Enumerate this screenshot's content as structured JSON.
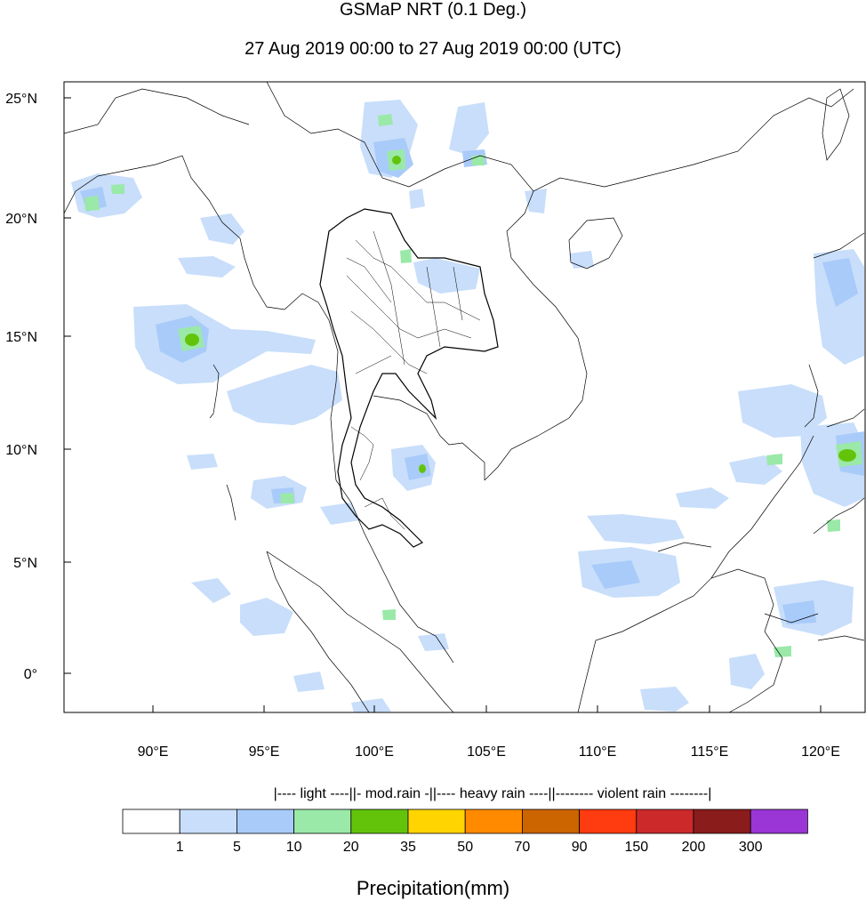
{
  "title": "GSMaP NRT (0.1 Deg.)",
  "subtitle": "27 Aug 2019 00:00 to 27 Aug 2019 00:00 (UTC)",
  "map": {
    "lon_ticks": [
      "90°E",
      "95°E",
      "100°E",
      "105°E",
      "110°E",
      "115°E",
      "120°E"
    ],
    "lat_ticks": [
      "25°N",
      "20°N",
      "15°N",
      "10°N",
      "5°N",
      "0°"
    ]
  },
  "colorbar": {
    "categories_text": "|---- light ----||- mod.rain -||---- heavy rain ----||-------- violent rain --------|",
    "colors": [
      "#ffffff",
      "#c8defa",
      "#a9cbfa",
      "#9ae9a8",
      "#63c30b",
      "#ffd400",
      "#ff8a00",
      "#cc6400",
      "#ff3b10",
      "#cc2a2a",
      "#8a1c1c",
      "#9a35d6"
    ],
    "tick_labels": [
      "1",
      "5",
      "10",
      "20",
      "35",
      "50",
      "70",
      "90",
      "150",
      "200",
      "300"
    ]
  },
  "xtitle": "Precipitation(mm)"
}
